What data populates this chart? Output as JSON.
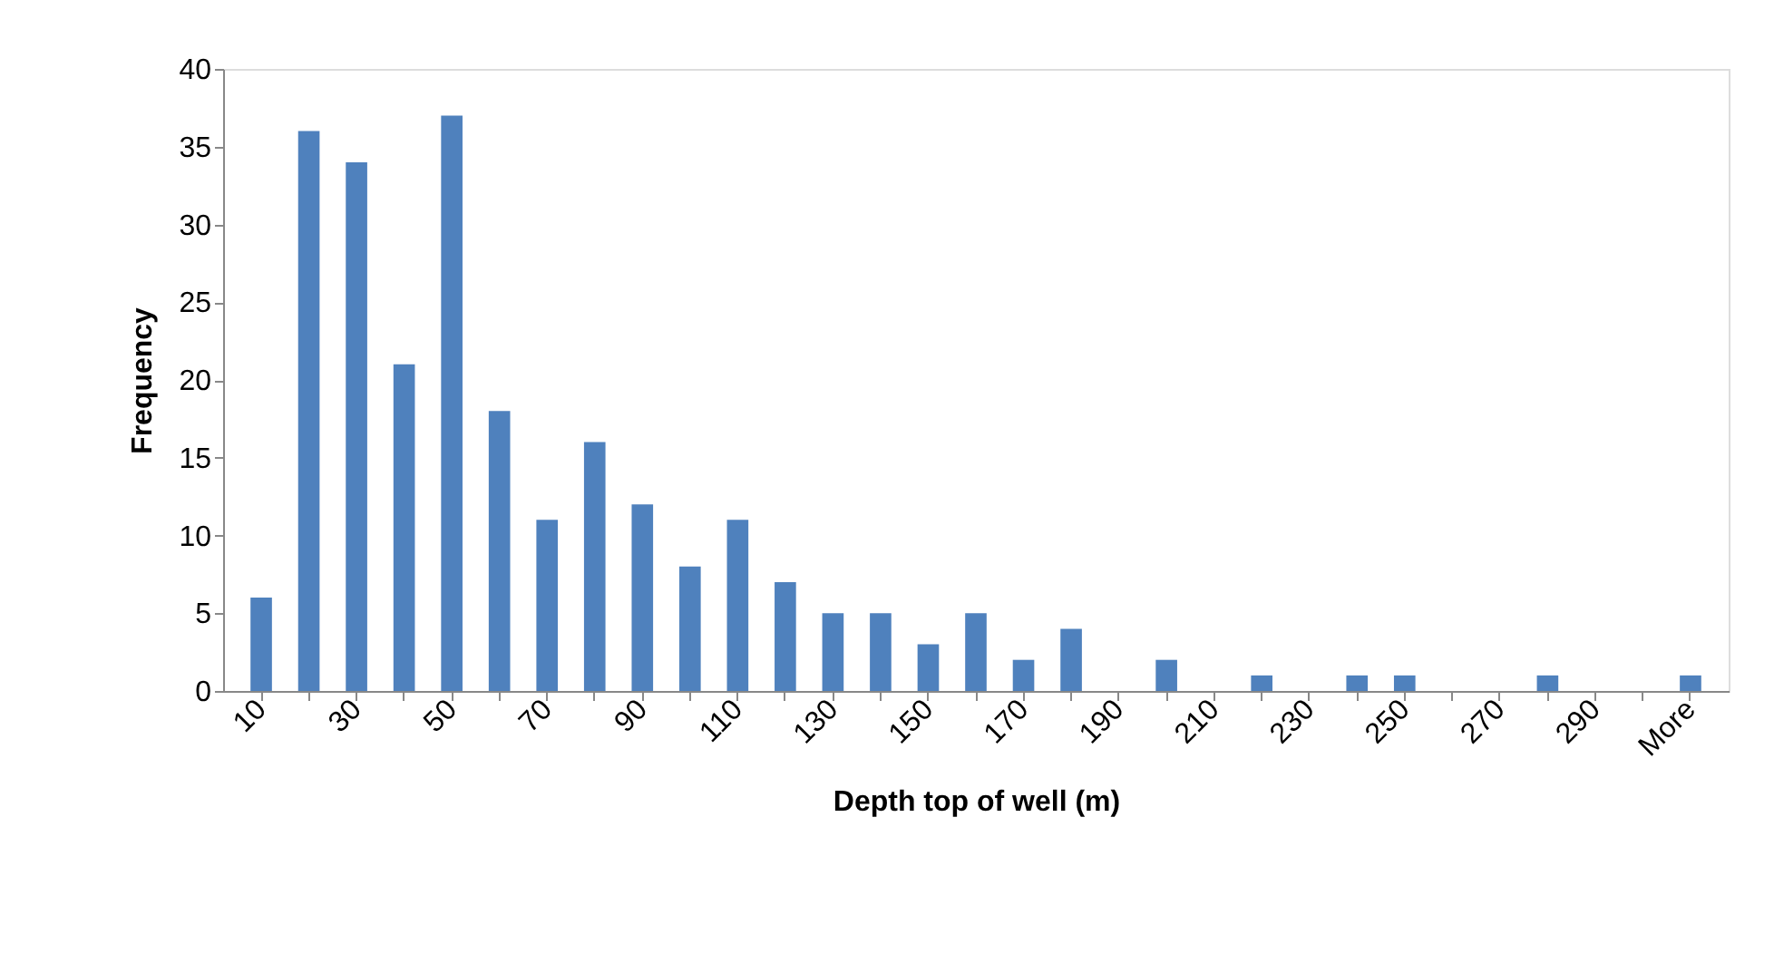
{
  "chart_data": {
    "type": "bar",
    "xlabel": "Depth top of well (m)",
    "ylabel": "Frequency",
    "categories": [
      "10",
      null,
      "30",
      null,
      "50",
      null,
      "70",
      null,
      "90",
      null,
      "110",
      null,
      "130",
      null,
      "150",
      null,
      "170",
      null,
      "190",
      null,
      "210",
      null,
      "230",
      null,
      "250",
      null,
      "270",
      null,
      "290",
      null,
      "More"
    ],
    "values": [
      6,
      36,
      34,
      21,
      37,
      18,
      11,
      16,
      12,
      8,
      11,
      7,
      5,
      5,
      3,
      5,
      2,
      4,
      0,
      2,
      0,
      1,
      0,
      1,
      1,
      0,
      0,
      1,
      0,
      0,
      1
    ],
    "color": "#4f81bd",
    "ylim": [
      0,
      40
    ],
    "yticks": [
      0,
      5,
      10,
      15,
      20,
      25,
      30,
      35,
      40
    ],
    "grid": false
  }
}
